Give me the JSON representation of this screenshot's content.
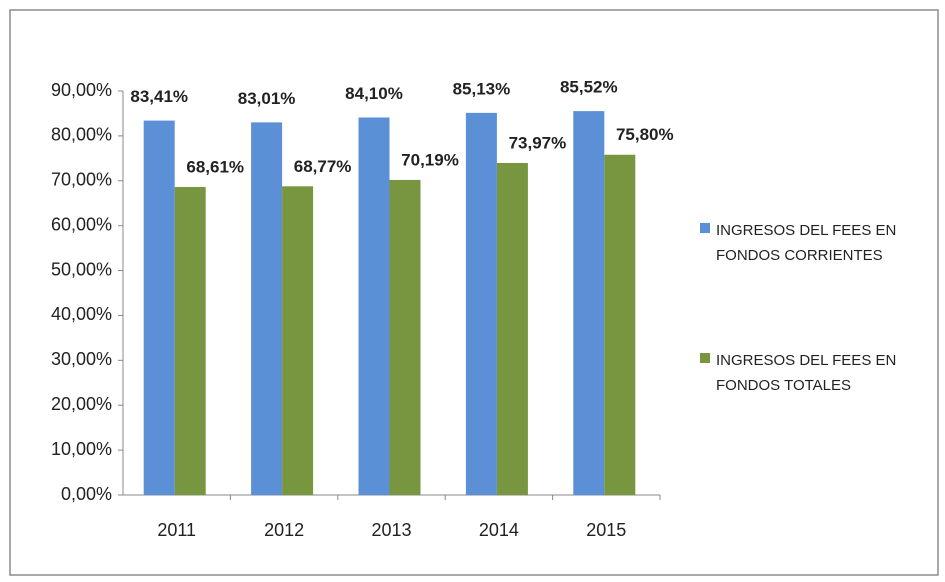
{
  "chart_data": {
    "type": "bar",
    "categories": [
      "2011",
      "2012",
      "2013",
      "2014",
      "2015"
    ],
    "series": [
      {
        "name": "INGRESOS DEL FEES EN FONDOS CORRIENTES",
        "color": "#5b8fd6",
        "values": [
          83.41,
          83.01,
          84.1,
          85.13,
          85.52
        ],
        "value_labels": [
          "83,41%",
          "83,01%",
          "84,10%",
          "85,13%",
          "85,52%"
        ]
      },
      {
        "name": "INGRESOS DEL FEES EN FONDOS TOTALES",
        "color": "#77963f",
        "values": [
          68.61,
          68.77,
          70.19,
          73.97,
          75.8
        ],
        "value_labels": [
          "68,61%",
          "68,77%",
          "70,19%",
          "73,97%",
          "75,80%"
        ]
      }
    ],
    "ylim": [
      0,
      90
    ],
    "yticks": [
      {
        "value": 0,
        "label": "0,00%"
      },
      {
        "value": 10,
        "label": "10,00%"
      },
      {
        "value": 20,
        "label": "20,00%"
      },
      {
        "value": 30,
        "label": "30,00%"
      },
      {
        "value": 40,
        "label": "40,00%"
      },
      {
        "value": 50,
        "label": "50,00%"
      },
      {
        "value": 60,
        "label": "60,00%"
      },
      {
        "value": 70,
        "label": "70,00%"
      },
      {
        "value": 80,
        "label": "80,00%"
      },
      {
        "value": 90,
        "label": "90,00%"
      }
    ],
    "legend": "right",
    "grid": false
  }
}
